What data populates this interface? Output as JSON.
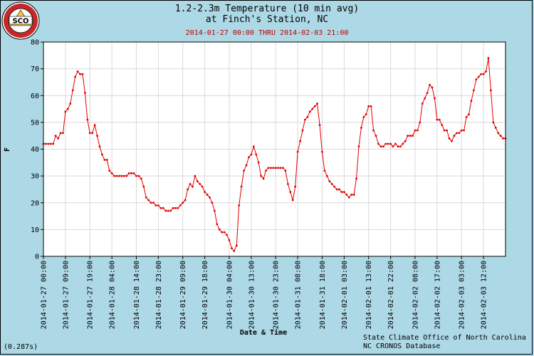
{
  "chart_data": {
    "type": "line",
    "title": "1.2-2.3m Temperature (10 min avg)",
    "title_line2": "at Finch's Station, NC",
    "subtitle": "2014-01-27 00:00 THRU 2014-02-03 21:00",
    "xlabel": "Date & Time",
    "ylabel": "F",
    "ylim": [
      0,
      80
    ],
    "yticks": [
      0,
      10,
      20,
      30,
      40,
      50,
      60,
      70,
      80
    ],
    "xlim": [
      "2014-01-27 00:00",
      "2014-02-03 21:00"
    ],
    "xticks": [
      "2014-01-27 00:00",
      "2014-01-27 09:00",
      "2014-01-27 19:00",
      "2014-01-28 04:00",
      "2014-01-28 14:00",
      "2014-01-28 23:00",
      "2014-01-29 09:00",
      "2014-01-29 18:00",
      "2014-01-30 04:00",
      "2014-01-30 13:00",
      "2014-01-30 23:00",
      "2014-01-31 08:00",
      "2014-01-31 18:00",
      "2014-02-01 03:00",
      "2014-02-01 13:00",
      "2014-02-01 22:00",
      "2014-02-02 08:00",
      "2014-02-02 17:00",
      "2014-02-03 03:00",
      "2014-02-03 12:00"
    ],
    "grid": true,
    "series": [
      {
        "name": "",
        "color": "#e00000",
        "points": [
          [
            "2014-01-27 00:00",
            42
          ],
          [
            "2014-01-27 01:00",
            42
          ],
          [
            "2014-01-27 02:00",
            42
          ],
          [
            "2014-01-27 03:00",
            42
          ],
          [
            "2014-01-27 04:00",
            42
          ],
          [
            "2014-01-27 05:00",
            45
          ],
          [
            "2014-01-27 06:00",
            44
          ],
          [
            "2014-01-27 07:00",
            46
          ],
          [
            "2014-01-27 08:00",
            46
          ],
          [
            "2014-01-27 09:00",
            54
          ],
          [
            "2014-01-27 10:00",
            55
          ],
          [
            "2014-01-27 11:00",
            57
          ],
          [
            "2014-01-27 12:00",
            62
          ],
          [
            "2014-01-27 13:00",
            67
          ],
          [
            "2014-01-27 14:00",
            69
          ],
          [
            "2014-01-27 15:00",
            68
          ],
          [
            "2014-01-27 16:00",
            68
          ],
          [
            "2014-01-27 17:00",
            61
          ],
          [
            "2014-01-27 18:00",
            51
          ],
          [
            "2014-01-27 19:00",
            46
          ],
          [
            "2014-01-27 20:00",
            46
          ],
          [
            "2014-01-27 21:00",
            49
          ],
          [
            "2014-01-27 22:00",
            45
          ],
          [
            "2014-01-27 23:00",
            41
          ],
          [
            "2014-01-28 00:00",
            38
          ],
          [
            "2014-01-28 01:00",
            36
          ],
          [
            "2014-01-28 02:00",
            36
          ],
          [
            "2014-01-28 03:00",
            32
          ],
          [
            "2014-01-28 04:00",
            31
          ],
          [
            "2014-01-28 05:00",
            30
          ],
          [
            "2014-01-28 06:00",
            30
          ],
          [
            "2014-01-28 07:00",
            30
          ],
          [
            "2014-01-28 08:00",
            30
          ],
          [
            "2014-01-28 09:00",
            30
          ],
          [
            "2014-01-28 10:00",
            30
          ],
          [
            "2014-01-28 11:00",
            31
          ],
          [
            "2014-01-28 12:00",
            31
          ],
          [
            "2014-01-28 13:00",
            31
          ],
          [
            "2014-01-28 14:00",
            30
          ],
          [
            "2014-01-28 15:00",
            30
          ],
          [
            "2014-01-28 16:00",
            29
          ],
          [
            "2014-01-28 17:00",
            26
          ],
          [
            "2014-01-28 18:00",
            22
          ],
          [
            "2014-01-28 19:00",
            21
          ],
          [
            "2014-01-28 20:00",
            20
          ],
          [
            "2014-01-28 21:00",
            20
          ],
          [
            "2014-01-28 22:00",
            19
          ],
          [
            "2014-01-28 23:00",
            19
          ],
          [
            "2014-01-29 00:00",
            18
          ],
          [
            "2014-01-29 01:00",
            18
          ],
          [
            "2014-01-29 02:00",
            17
          ],
          [
            "2014-01-29 03:00",
            17
          ],
          [
            "2014-01-29 04:00",
            17
          ],
          [
            "2014-01-29 05:00",
            18
          ],
          [
            "2014-01-29 06:00",
            18
          ],
          [
            "2014-01-29 07:00",
            18
          ],
          [
            "2014-01-29 08:00",
            19
          ],
          [
            "2014-01-29 09:00",
            20
          ],
          [
            "2014-01-29 10:00",
            21
          ],
          [
            "2014-01-29 11:00",
            25
          ],
          [
            "2014-01-29 12:00",
            27
          ],
          [
            "2014-01-29 13:00",
            26
          ],
          [
            "2014-01-29 14:00",
            30
          ],
          [
            "2014-01-29 15:00",
            28
          ],
          [
            "2014-01-29 16:00",
            27
          ],
          [
            "2014-01-29 17:00",
            26
          ],
          [
            "2014-01-29 18:00",
            24
          ],
          [
            "2014-01-29 19:00",
            23
          ],
          [
            "2014-01-29 20:00",
            22
          ],
          [
            "2014-01-29 21:00",
            20
          ],
          [
            "2014-01-29 22:00",
            17
          ],
          [
            "2014-01-29 23:00",
            12
          ],
          [
            "2014-01-30 00:00",
            10
          ],
          [
            "2014-01-30 01:00",
            9
          ],
          [
            "2014-01-30 02:00",
            9
          ],
          [
            "2014-01-30 03:00",
            8
          ],
          [
            "2014-01-30 04:00",
            6
          ],
          [
            "2014-01-30 05:00",
            3
          ],
          [
            "2014-01-30 06:00",
            2
          ],
          [
            "2014-01-30 07:00",
            4
          ],
          [
            "2014-01-30 08:00",
            19
          ],
          [
            "2014-01-30 09:00",
            26
          ],
          [
            "2014-01-30 10:00",
            32
          ],
          [
            "2014-01-30 11:00",
            34
          ],
          [
            "2014-01-30 12:00",
            37
          ],
          [
            "2014-01-30 13:00",
            38
          ],
          [
            "2014-01-30 14:00",
            41
          ],
          [
            "2014-01-30 15:00",
            38
          ],
          [
            "2014-01-30 16:00",
            35
          ],
          [
            "2014-01-30 17:00",
            30
          ],
          [
            "2014-01-30 18:00",
            29
          ],
          [
            "2014-01-30 19:00",
            32
          ],
          [
            "2014-01-30 20:00",
            33
          ],
          [
            "2014-01-30 21:00",
            33
          ],
          [
            "2014-01-30 22:00",
            33
          ],
          [
            "2014-01-30 23:00",
            33
          ],
          [
            "2014-01-31 00:00",
            33
          ],
          [
            "2014-01-31 01:00",
            33
          ],
          [
            "2014-01-31 02:00",
            33
          ],
          [
            "2014-01-31 03:00",
            32
          ],
          [
            "2014-01-31 04:00",
            27
          ],
          [
            "2014-01-31 05:00",
            24
          ],
          [
            "2014-01-31 06:00",
            21
          ],
          [
            "2014-01-31 07:00",
            26
          ],
          [
            "2014-01-31 08:00",
            39
          ],
          [
            "2014-01-31 09:00",
            43
          ],
          [
            "2014-01-31 10:00",
            47
          ],
          [
            "2014-01-31 11:00",
            51
          ],
          [
            "2014-01-31 12:00",
            52
          ],
          [
            "2014-01-31 13:00",
            54
          ],
          [
            "2014-01-31 14:00",
            55
          ],
          [
            "2014-01-31 15:00",
            56
          ],
          [
            "2014-01-31 16:00",
            57
          ],
          [
            "2014-01-31 17:00",
            49
          ],
          [
            "2014-01-31 18:00",
            39
          ],
          [
            "2014-01-31 19:00",
            32
          ],
          [
            "2014-01-31 20:00",
            30
          ],
          [
            "2014-01-31 21:00",
            28
          ],
          [
            "2014-01-31 22:00",
            27
          ],
          [
            "2014-01-31 23:00",
            26
          ],
          [
            "2014-02-01 00:00",
            25
          ],
          [
            "2014-02-01 01:00",
            25
          ],
          [
            "2014-02-01 02:00",
            24
          ],
          [
            "2014-02-01 03:00",
            24
          ],
          [
            "2014-02-01 04:00",
            23
          ],
          [
            "2014-02-01 05:00",
            22
          ],
          [
            "2014-02-01 06:00",
            23
          ],
          [
            "2014-02-01 07:00",
            23
          ],
          [
            "2014-02-01 08:00",
            29
          ],
          [
            "2014-02-01 09:00",
            41
          ],
          [
            "2014-02-01 10:00",
            48
          ],
          [
            "2014-02-01 11:00",
            52
          ],
          [
            "2014-02-01 12:00",
            53
          ],
          [
            "2014-02-01 13:00",
            56
          ],
          [
            "2014-02-01 14:00",
            56
          ],
          [
            "2014-02-01 15:00",
            47
          ],
          [
            "2014-02-01 16:00",
            45
          ],
          [
            "2014-02-01 17:00",
            42
          ],
          [
            "2014-02-01 18:00",
            41
          ],
          [
            "2014-02-01 19:00",
            41
          ],
          [
            "2014-02-01 20:00",
            42
          ],
          [
            "2014-02-01 21:00",
            42
          ],
          [
            "2014-02-01 22:00",
            42
          ],
          [
            "2014-02-01 23:00",
            41
          ],
          [
            "2014-02-02 00:00",
            42
          ],
          [
            "2014-02-02 01:00",
            41
          ],
          [
            "2014-02-02 02:00",
            41
          ],
          [
            "2014-02-02 03:00",
            42
          ],
          [
            "2014-02-02 04:00",
            43
          ],
          [
            "2014-02-02 05:00",
            45
          ],
          [
            "2014-02-02 06:00",
            45
          ],
          [
            "2014-02-02 07:00",
            45
          ],
          [
            "2014-02-02 08:00",
            47
          ],
          [
            "2014-02-02 09:00",
            47
          ],
          [
            "2014-02-02 10:00",
            50
          ],
          [
            "2014-02-02 11:00",
            57
          ],
          [
            "2014-02-02 12:00",
            59
          ],
          [
            "2014-02-02 13:00",
            61
          ],
          [
            "2014-02-02 14:00",
            64
          ],
          [
            "2014-02-02 15:00",
            63
          ],
          [
            "2014-02-02 16:00",
            59
          ],
          [
            "2014-02-02 17:00",
            51
          ],
          [
            "2014-02-02 18:00",
            51
          ],
          [
            "2014-02-02 19:00",
            49
          ],
          [
            "2014-02-02 20:00",
            47
          ],
          [
            "2014-02-02 21:00",
            47
          ],
          [
            "2014-02-02 22:00",
            44
          ],
          [
            "2014-02-02 23:00",
            43
          ],
          [
            "2014-02-03 00:00",
            45
          ],
          [
            "2014-02-03 01:00",
            46
          ],
          [
            "2014-02-03 02:00",
            46
          ],
          [
            "2014-02-03 03:00",
            47
          ],
          [
            "2014-02-03 04:00",
            47
          ],
          [
            "2014-02-03 05:00",
            52
          ],
          [
            "2014-02-03 06:00",
            53
          ],
          [
            "2014-02-03 07:00",
            58
          ],
          [
            "2014-02-03 08:00",
            62
          ],
          [
            "2014-02-03 09:00",
            66
          ],
          [
            "2014-02-03 10:00",
            67
          ],
          [
            "2014-02-03 11:00",
            68
          ],
          [
            "2014-02-03 12:00",
            68
          ],
          [
            "2014-02-03 13:00",
            69
          ],
          [
            "2014-02-03 14:00",
            74
          ],
          [
            "2014-02-03 15:00",
            62
          ],
          [
            "2014-02-03 16:00",
            50
          ],
          [
            "2014-02-03 17:00",
            48
          ],
          [
            "2014-02-03 18:00",
            46
          ],
          [
            "2014-02-03 19:00",
            45
          ],
          [
            "2014-02-03 20:00",
            44
          ],
          [
            "2014-02-03 21:00",
            44
          ]
        ]
      }
    ]
  },
  "logo_text": "STATE CLIMATE OFFICE OF NORTH CAROLINA SCO",
  "credit_line1": "State Climate Office of North Carolina",
  "credit_line2": "NC CRONOS Database",
  "timing": "(0.287s)",
  "colors": {
    "background": "#add8e6",
    "plot_background": "#ffffff",
    "grid": "#d9d9d9",
    "series": "#e00000",
    "subtitle": "#c00000"
  }
}
